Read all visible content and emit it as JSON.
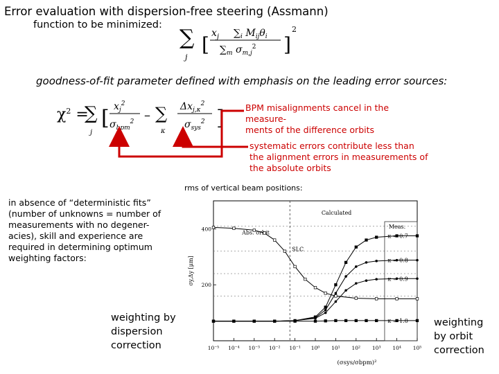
{
  "slide": {
    "title": "Error evaluation with dispersion-free steering (Assmann)",
    "function_label": "function to be minimized:",
    "gof_label": "goodness-of-fit parameter defined with emphasis on the leading error sources:",
    "note_bpm": "BPM misalignments cancel in the measure-\nments of the difference orbits",
    "note_sys": "systematic errors contribute less than\nthe alignment errors in measurements of\nthe absolute orbits",
    "rms_label": "rms of vertical beam positions:",
    "absence_text": "in absence of “deterministic fits”\n(number of unknowns = number of\nmeasurements with no degener-\nacies), skill and experience are\nrequired in determining optimum\nweighting factors:",
    "weight_dispersion": "weighting by\ndispersion\ncorrection",
    "weight_orbit": "weighting\nby orbit\ncorrection",
    "arrow_color": "#cc0000"
  },
  "chart_data": {
    "type": "line",
    "xscale": "log",
    "yscale": "linear",
    "xlabel": "(σsys/σbpm)²",
    "ylabel": "σy,Δy [μm]",
    "x_ticks": [
      "10⁻⁵",
      "10⁻⁴",
      "10⁻³",
      "10⁻²",
      "10⁻¹",
      "10⁰",
      "10¹",
      "10²",
      "10³",
      "10⁴",
      "10⁵"
    ],
    "y_ticks": [
      200,
      400
    ],
    "ylim": [
      0,
      500
    ],
    "annotations": [
      "Calculated",
      "Meas.",
      "Abs. orbit",
      "SLC"
    ],
    "series": [
      {
        "name": "Abs. orbit",
        "x": [
          -5,
          -4,
          -3,
          -2.5,
          -2,
          -1.5,
          -1,
          -0.5,
          0,
          0.5,
          1,
          2,
          3,
          4,
          5
        ],
        "y": [
          405,
          402,
          395,
          385,
          360,
          320,
          265,
          220,
          190,
          170,
          160,
          152,
          150,
          150,
          150
        ]
      },
      {
        "name": "κ = 0.7",
        "x": [
          -5,
          -4,
          -3,
          -2,
          -1,
          0,
          0.5,
          1,
          1.5,
          2,
          2.5,
          3,
          4,
          5
        ],
        "y": [
          70,
          70,
          70,
          70,
          72,
          85,
          120,
          200,
          280,
          335,
          360,
          370,
          375,
          375
        ]
      },
      {
        "name": "κ = 0.8",
        "x": [
          -5,
          -4,
          -3,
          -2,
          -1,
          0,
          0.5,
          1,
          1.5,
          2,
          2.5,
          3,
          4,
          5
        ],
        "y": [
          70,
          70,
          70,
          70,
          72,
          82,
          110,
          170,
          230,
          265,
          280,
          285,
          288,
          288
        ]
      },
      {
        "name": "κ = 0.9",
        "x": [
          -5,
          -4,
          -3,
          -2,
          -1,
          0,
          0.5,
          1,
          1.5,
          2,
          2.5,
          3,
          4,
          5
        ],
        "y": [
          70,
          70,
          70,
          70,
          72,
          80,
          100,
          140,
          180,
          205,
          215,
          220,
          222,
          222
        ]
      },
      {
        "name": "κ = 1.0",
        "x": [
          -5,
          -4,
          -3,
          -2,
          -1,
          0,
          0.5,
          1,
          1.5,
          2,
          2.5,
          3,
          4,
          5
        ],
        "y": [
          70,
          70,
          70,
          70,
          70,
          70,
          71,
          72,
          72,
          72,
          72,
          72,
          72,
          72
        ]
      }
    ],
    "slc_x": 0.15
  }
}
